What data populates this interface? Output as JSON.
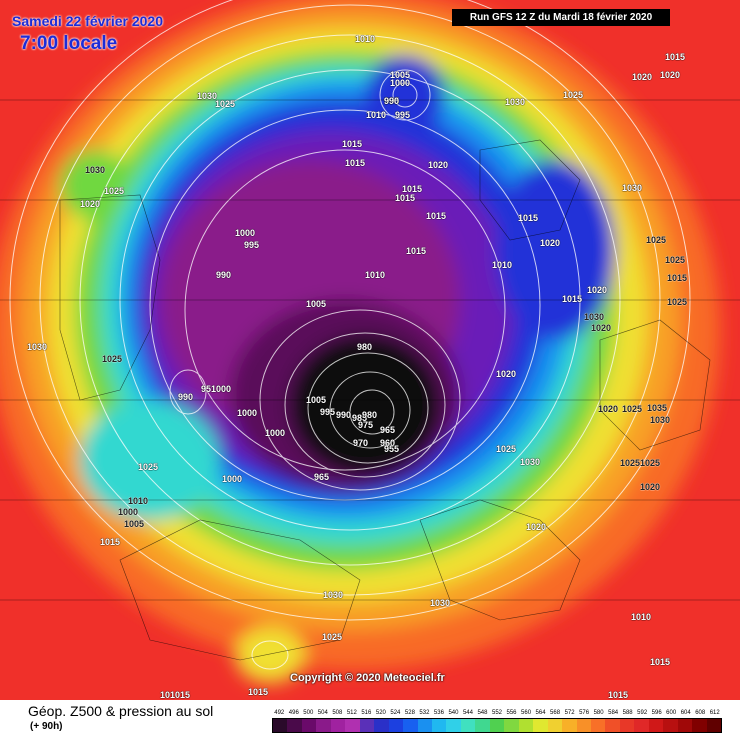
{
  "header": {
    "date": "Samedi 22 février 2020",
    "time": "7:00 locale",
    "run": "Run GFS 12 Z du Mardi 18 février 2020"
  },
  "copyright": "Copyright © 2020 Meteociel.fr",
  "footer": {
    "title": "Géop. Z500 & pression au sol",
    "subtitle": "(+ 90h)"
  },
  "legend": {
    "values": [
      "492",
      "496",
      "500",
      "504",
      "508",
      "512",
      "516",
      "520",
      "524",
      "528",
      "532",
      "536",
      "540",
      "544",
      "548",
      "552",
      "556",
      "560",
      "564",
      "568",
      "572",
      "576",
      "580",
      "584",
      "588",
      "592",
      "596",
      "600",
      "604",
      "608",
      "612"
    ],
    "colors": [
      "#2a0a2a",
      "#4a0a4a",
      "#6a0a6a",
      "#8a1a8a",
      "#a022a0",
      "#b030b0",
      "#5a30b8",
      "#2a30c8",
      "#1c40e0",
      "#1860f0",
      "#1a90f0",
      "#20b8f0",
      "#30d0e8",
      "#40e0c0",
      "#40d890",
      "#50d050",
      "#80d840",
      "#b0e030",
      "#e0e830",
      "#f0d030",
      "#f8b028",
      "#f89028",
      "#f87028",
      "#f05028",
      "#e83828",
      "#e02828",
      "#d01818",
      "#b81010",
      "#a00808",
      "#800000",
      "#600000"
    ]
  },
  "isobars": [
    {
      "text": "1010",
      "tone": "light"
    },
    {
      "text": "1005",
      "tone": "light"
    },
    {
      "text": "1000",
      "tone": "light"
    },
    {
      "text": "995",
      "tone": "light"
    },
    {
      "text": "990",
      "tone": "light"
    },
    {
      "text": "1010",
      "tone": "light"
    },
    {
      "text": "995",
      "tone": "light"
    },
    {
      "text": "1030",
      "tone": "light"
    },
    {
      "text": "1025",
      "tone": "light"
    },
    {
      "text": "1030",
      "tone": "light"
    },
    {
      "text": "1025",
      "tone": "light"
    },
    {
      "text": "1015",
      "tone": "light"
    },
    {
      "text": "1020",
      "tone": "light"
    },
    {
      "text": "1015",
      "tone": "light"
    },
    {
      "text": "1015",
      "tone": "light"
    },
    {
      "text": "1020",
      "tone": "light"
    },
    {
      "text": "1015",
      "tone": "light"
    },
    {
      "text": "1015",
      "tone": "light"
    },
    {
      "text": "1030",
      "tone": "light"
    },
    {
      "text": "1025",
      "tone": "dark"
    },
    {
      "text": "1030",
      "tone": "dark"
    },
    {
      "text": "1025",
      "tone": "light"
    },
    {
      "text": "1020",
      "tone": "light"
    },
    {
      "text": "1000",
      "tone": "light"
    },
    {
      "text": "995",
      "tone": "light"
    },
    {
      "text": "990",
      "tone": "light"
    },
    {
      "text": "1015",
      "tone": "light"
    },
    {
      "text": "1015",
      "tone": "light"
    },
    {
      "text": "1010",
      "tone": "light"
    },
    {
      "text": "1015",
      "tone": "light"
    },
    {
      "text": "1020",
      "tone": "light"
    },
    {
      "text": "1010",
      "tone": "light"
    },
    {
      "text": "1015",
      "tone": "light"
    },
    {
      "text": "1020",
      "tone": "light"
    },
    {
      "text": "1025",
      "tone": "dark"
    },
    {
      "text": "1015",
      "tone": "dark"
    },
    {
      "text": "1005",
      "tone": "light"
    },
    {
      "text": "1030",
      "tone": "dark"
    },
    {
      "text": "1020",
      "tone": "dark"
    },
    {
      "text": "1025",
      "tone": "dark"
    },
    {
      "text": "1030",
      "tone": "light"
    },
    {
      "text": "1025",
      "tone": "dark"
    },
    {
      "text": "980",
      "tone": "light"
    },
    {
      "text": "990",
      "tone": "light"
    },
    {
      "text": "951000",
      "tone": "light"
    },
    {
      "text": "1000",
      "tone": "light"
    },
    {
      "text": "1005",
      "tone": "light"
    },
    {
      "text": "995",
      "tone": "light"
    },
    {
      "text": "990",
      "tone": "light"
    },
    {
      "text": "985",
      "tone": "light"
    },
    {
      "text": "980",
      "tone": "light"
    },
    {
      "text": "975",
      "tone": "light"
    },
    {
      "text": "965",
      "tone": "light"
    },
    {
      "text": "970",
      "tone": "light"
    },
    {
      "text": "960",
      "tone": "light"
    },
    {
      "text": "955",
      "tone": "light"
    },
    {
      "text": "1000",
      "tone": "light"
    },
    {
      "text": "1000",
      "tone": "light"
    },
    {
      "text": "965",
      "tone": "light"
    },
    {
      "text": "1020",
      "tone": "light"
    },
    {
      "text": "1020",
      "tone": "dark"
    },
    {
      "text": "1025",
      "tone": "dark"
    },
    {
      "text": "1035",
      "tone": "dark"
    },
    {
      "text": "1030",
      "tone": "dark"
    },
    {
      "text": "1025",
      "tone": "dark"
    },
    {
      "text": "1025",
      "tone": "dark"
    },
    {
      "text": "1020",
      "tone": "dark"
    },
    {
      "text": "1025",
      "tone": "light"
    },
    {
      "text": "1030",
      "tone": "light"
    },
    {
      "text": "1025",
      "tone": "light"
    },
    {
      "text": "1010",
      "tone": "dark"
    },
    {
      "text": "1000",
      "tone": "dark"
    },
    {
      "text": "1005",
      "tone": "dark"
    },
    {
      "text": "1015",
      "tone": "light"
    },
    {
      "text": "1020",
      "tone": "light"
    },
    {
      "text": "1030",
      "tone": "light"
    },
    {
      "text": "1030",
      "tone": "light"
    },
    {
      "text": "1025",
      "tone": "light"
    },
    {
      "text": "1010",
      "tone": "light"
    },
    {
      "text": "101015",
      "tone": "light"
    },
    {
      "text": "1015",
      "tone": "light"
    },
    {
      "text": "1015",
      "tone": "light"
    },
    {
      "text": "1015",
      "tone": "light"
    },
    {
      "text": "1020",
      "tone": "light"
    }
  ]
}
